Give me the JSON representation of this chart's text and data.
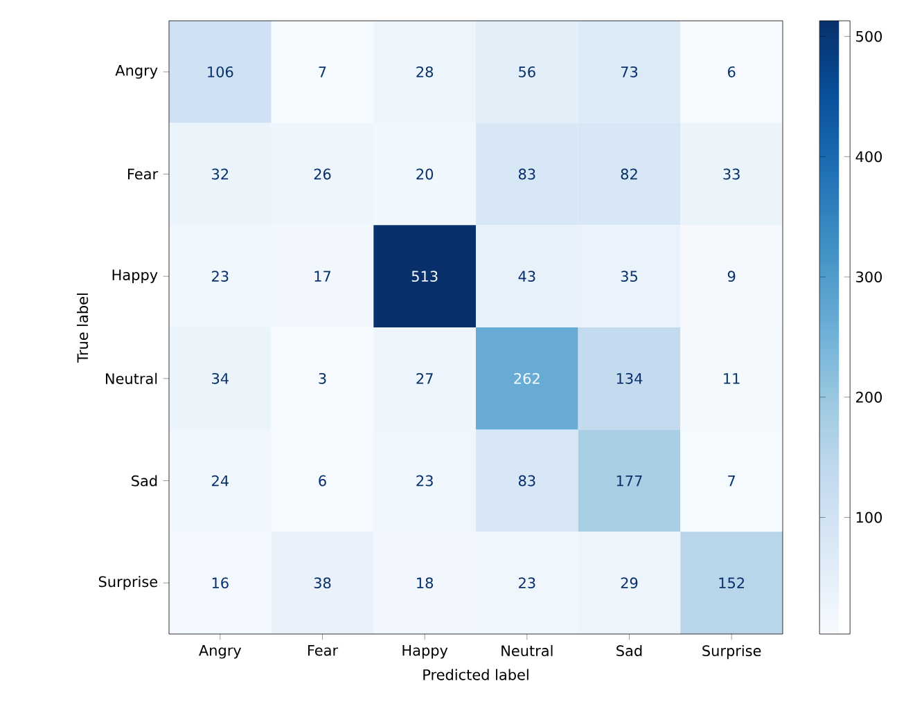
{
  "chart_data": {
    "type": "heatmap",
    "xlabel": "Predicted label",
    "ylabel": "True label",
    "categories": [
      "Angry",
      "Fear",
      "Happy",
      "Neutral",
      "Sad",
      "Surprise"
    ],
    "y_categories": [
      "Angry",
      "Fear",
      "Happy",
      "Neutral",
      "Sad",
      "Surprise"
    ],
    "cells": [
      [
        106,
        7,
        28,
        56,
        73,
        6
      ],
      [
        32,
        26,
        20,
        83,
        82,
        33
      ],
      [
        23,
        17,
        513,
        43,
        35,
        9
      ],
      [
        34,
        3,
        27,
        262,
        134,
        11
      ],
      [
        24,
        6,
        23,
        83,
        177,
        7
      ],
      [
        16,
        38,
        18,
        23,
        29,
        152
      ]
    ],
    "clim": [
      3,
      513
    ],
    "cticks": [
      100,
      200,
      300,
      400,
      500
    ],
    "data_labels": true
  }
}
